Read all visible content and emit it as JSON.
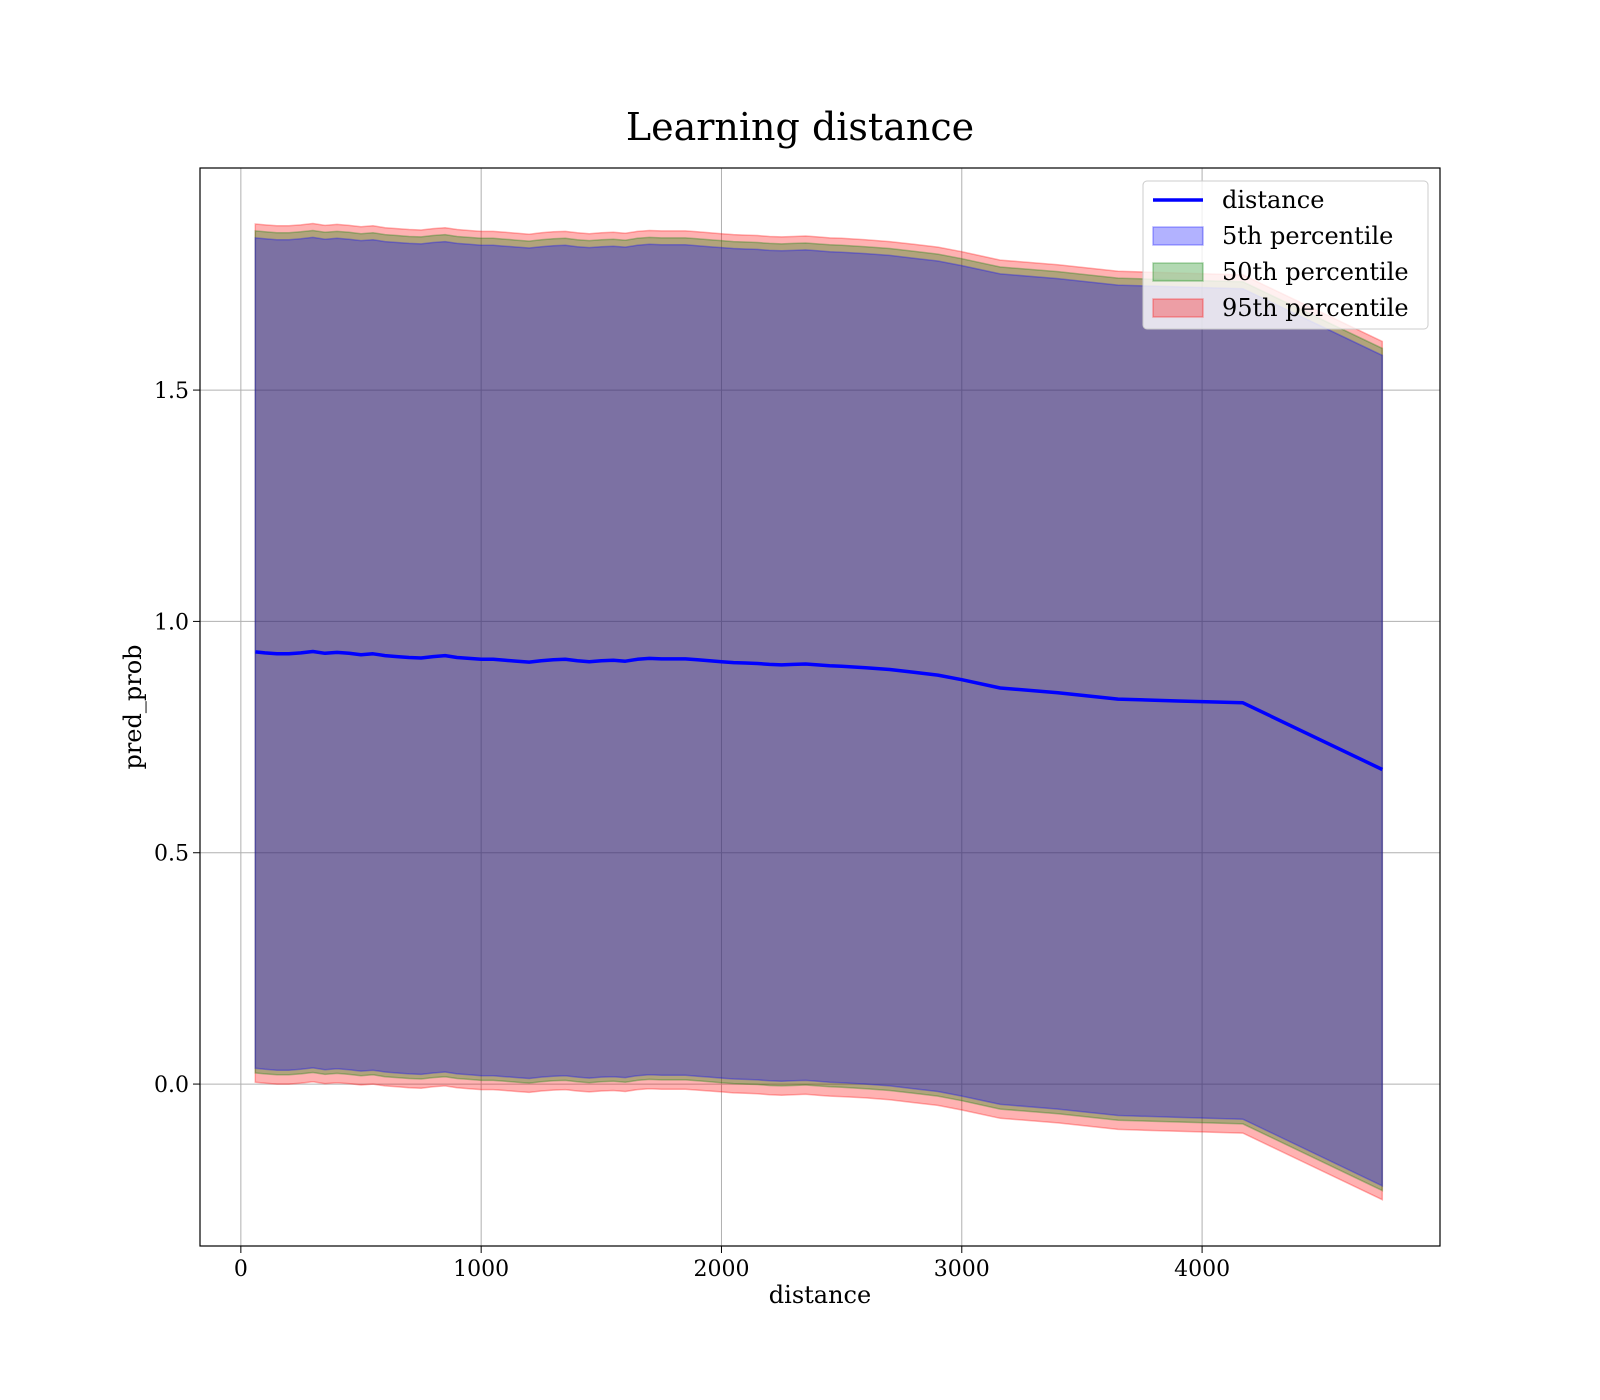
{
  "chart_data": {
    "type": "line",
    "title": "Learning distance",
    "xlabel": "distance",
    "ylabel": "pred_prob",
    "xlim": [
      -170,
      4990
    ],
    "ylim": [
      -0.35,
      1.98
    ],
    "xticks": [
      0,
      1000,
      2000,
      3000,
      4000
    ],
    "xtick_labels": [
      "0",
      "1000",
      "2000",
      "3000",
      "4000"
    ],
    "yticks": [
      0.0,
      0.5,
      1.0,
      1.5
    ],
    "ytick_labels": [
      "0.0",
      "0.5",
      "1.0",
      "1.5"
    ],
    "grid": true,
    "legend_position": "upper right",
    "x": [
      60,
      100,
      150,
      200,
      250,
      300,
      350,
      400,
      450,
      500,
      550,
      600,
      650,
      700,
      750,
      800,
      850,
      900,
      950,
      1000,
      1050,
      1100,
      1150,
      1200,
      1250,
      1300,
      1350,
      1400,
      1450,
      1500,
      1550,
      1600,
      1650,
      1700,
      1750,
      1800,
      1850,
      1900,
      1950,
      2000,
      2050,
      2100,
      2150,
      2200,
      2250,
      2300,
      2350,
      2400,
      2450,
      2500,
      2600,
      2700,
      2800,
      2900,
      3000,
      3160,
      3400,
      3650,
      3900,
      4170,
      4750
    ],
    "series": [
      {
        "name": "distance",
        "kind": "line",
        "color": "#0000ff",
        "values": [
          0.934,
          0.932,
          0.93,
          0.93,
          0.932,
          0.935,
          0.931,
          0.933,
          0.931,
          0.928,
          0.93,
          0.926,
          0.924,
          0.922,
          0.921,
          0.924,
          0.926,
          0.922,
          0.92,
          0.918,
          0.918,
          0.916,
          0.914,
          0.912,
          0.915,
          0.917,
          0.918,
          0.915,
          0.913,
          0.915,
          0.916,
          0.914,
          0.918,
          0.92,
          0.919,
          0.919,
          0.919,
          0.917,
          0.915,
          0.913,
          0.911,
          0.91,
          0.909,
          0.907,
          0.906,
          0.907,
          0.908,
          0.906,
          0.904,
          0.903,
          0.9,
          0.896,
          0.89,
          0.884,
          0.874,
          0.856,
          0.846,
          0.832,
          0.828,
          0.824,
          0.68
        ]
      },
      {
        "name": "5th percentile",
        "kind": "band",
        "color": "#0000ff",
        "offset_low": 0.9,
        "offset_high": 0.895
      },
      {
        "name": "50th percentile",
        "kind": "band",
        "color": "#008000",
        "offset_low": 0.91,
        "offset_high": 0.91
      },
      {
        "name": "95th percentile",
        "kind": "band",
        "color": "#ff0000",
        "offset_low": 0.93,
        "offset_high": 0.925
      }
    ]
  }
}
